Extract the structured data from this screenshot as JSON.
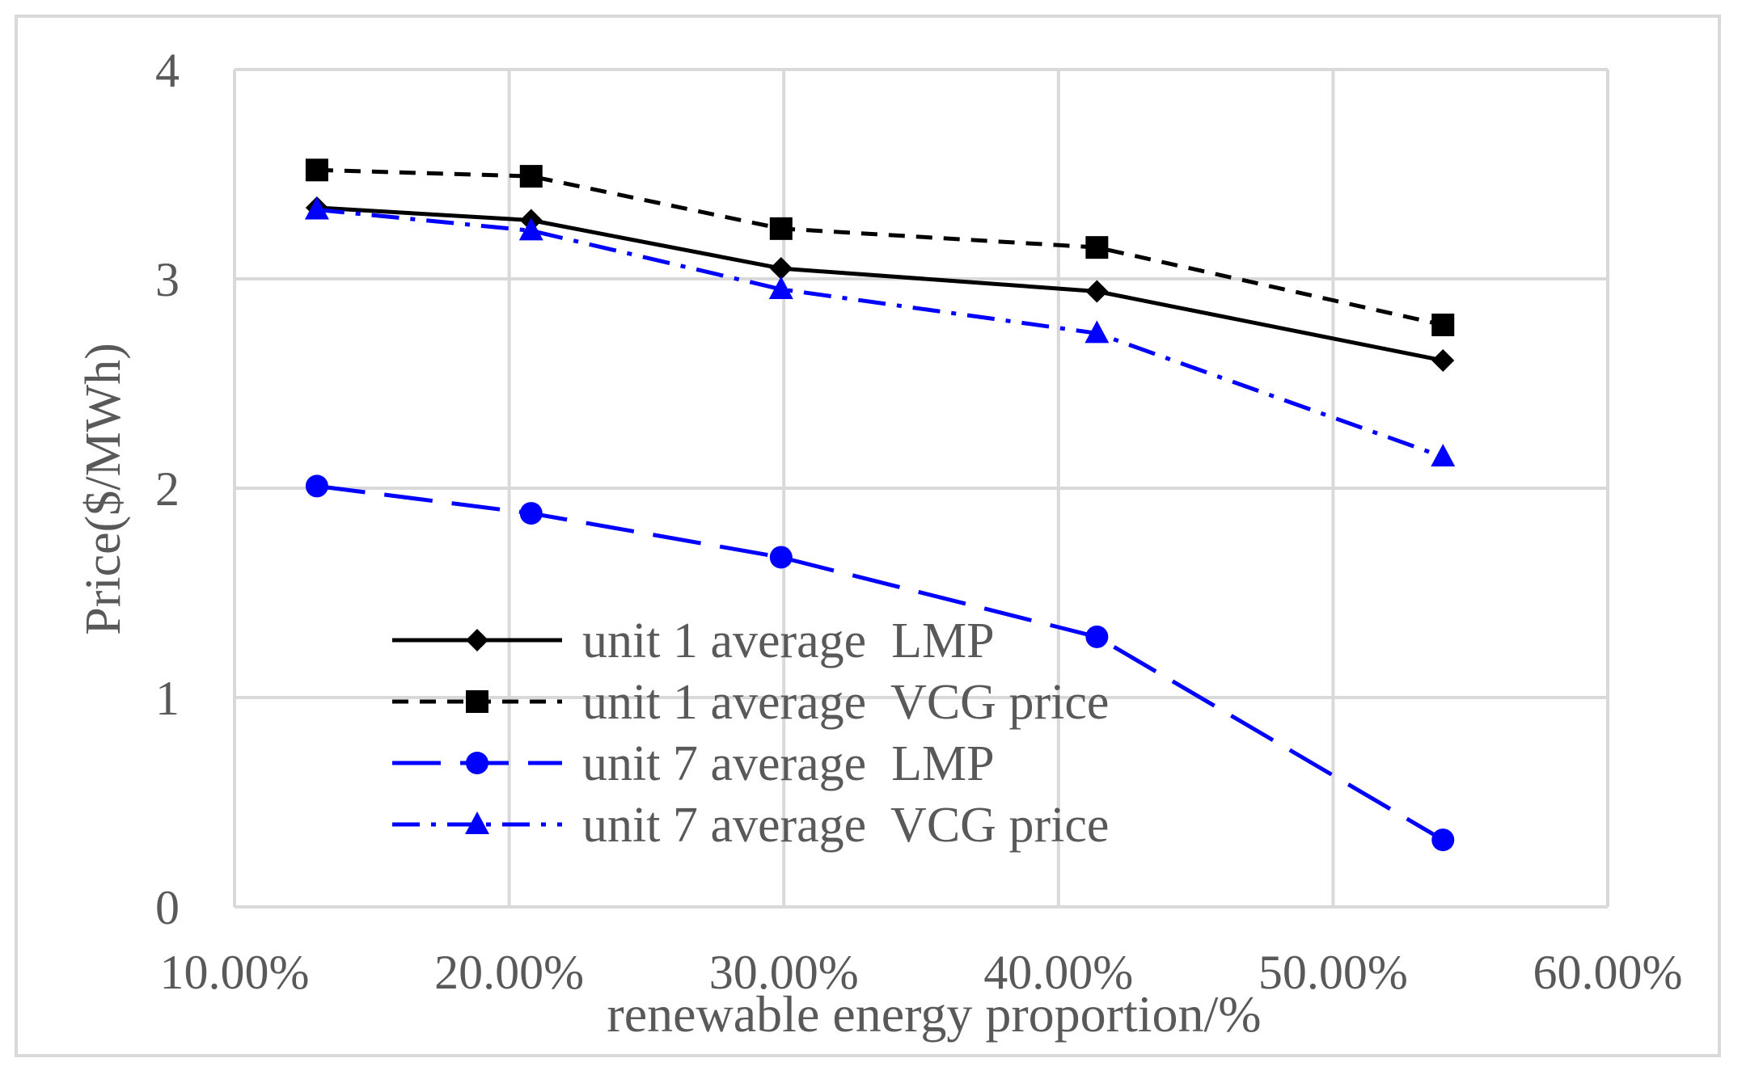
{
  "chart_data": {
    "type": "line",
    "title": "",
    "xlabel": "renewable energy proportion/%",
    "ylabel": "Price($/MWh)",
    "xlim": [
      0.1,
      0.6
    ],
    "ylim": [
      0,
      4
    ],
    "x_ticks": [
      {
        "value": 0.1,
        "label": "10.00%"
      },
      {
        "value": 0.2,
        "label": "20.00%"
      },
      {
        "value": 0.3,
        "label": "30.00%"
      },
      {
        "value": 0.4,
        "label": "40.00%"
      },
      {
        "value": 0.5,
        "label": "50.00%"
      },
      {
        "value": 0.6,
        "label": "60.00%"
      }
    ],
    "y_ticks": [
      {
        "value": 0,
        "label": "0"
      },
      {
        "value": 1,
        "label": "1"
      },
      {
        "value": 2,
        "label": "2"
      },
      {
        "value": 3,
        "label": "3"
      },
      {
        "value": 4,
        "label": "4"
      }
    ],
    "grid": true,
    "legend_position": "lower-left inside",
    "x": [
      0.13,
      0.208,
      0.299,
      0.414,
      0.54
    ],
    "series": [
      {
        "name": "unit 1 average  LMP",
        "color": "#000000",
        "dash": "solid",
        "marker": "diamond",
        "values": [
          3.34,
          3.28,
          3.05,
          2.94,
          2.61
        ]
      },
      {
        "name": "unit 1 average  VCG price",
        "color": "#000000",
        "dash": "dash",
        "marker": "square",
        "values": [
          3.52,
          3.49,
          3.24,
          3.15,
          2.78
        ]
      },
      {
        "name": "unit 7 average  LMP",
        "color": "#0000ff",
        "dash": "longdash",
        "marker": "circle",
        "values": [
          2.01,
          1.88,
          1.67,
          1.29,
          0.32
        ]
      },
      {
        "name": "unit 7 average  VCG price",
        "color": "#0000ff",
        "dash": "dashdot",
        "marker": "triangle",
        "values": [
          3.33,
          3.23,
          2.95,
          2.74,
          2.15
        ]
      }
    ]
  }
}
